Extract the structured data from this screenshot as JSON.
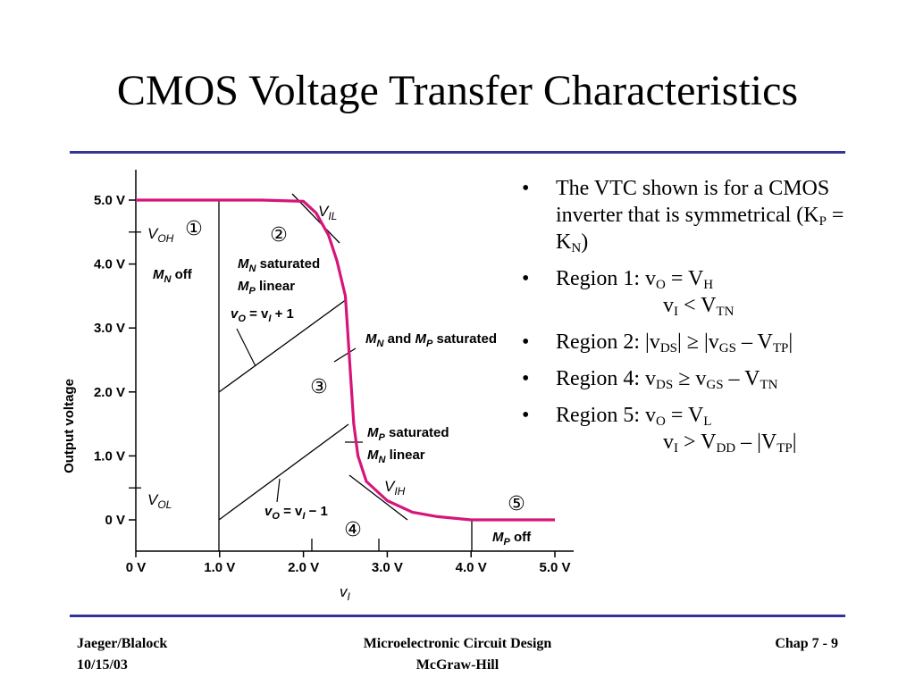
{
  "slide": {
    "title": "CMOS Voltage Transfer Characteristics"
  },
  "chart_data": {
    "type": "line",
    "xlabel": "vI",
    "ylabel": "Output voltage",
    "xlim": [
      0,
      5
    ],
    "ylim": [
      0,
      5
    ],
    "x_ticks": [
      "0 V",
      "1.0 V",
      "2.0 V",
      "3.0 V",
      "4.0 V",
      "5.0 V"
    ],
    "y_ticks": [
      "0 V",
      "1.0 V",
      "2.0 V",
      "3.0 V",
      "4.0 V",
      "5.0 V"
    ],
    "series": [
      {
        "x": [
          0,
          1.0,
          1.5,
          2.0,
          2.15,
          2.3,
          2.4,
          2.5,
          2.52,
          2.55,
          2.58,
          2.6,
          2.65,
          2.75,
          3.0,
          3.3,
          3.6,
          4.0,
          4.5,
          5.0
        ],
        "y": [
          5.0,
          5.0,
          5.0,
          4.98,
          4.8,
          4.45,
          4.05,
          3.5,
          3.1,
          2.5,
          1.9,
          1.5,
          1.0,
          0.6,
          0.3,
          0.12,
          0.05,
          0.0,
          0.0,
          0.0
        ]
      }
    ],
    "annotations": {
      "voh_main": "V",
      "voh_sub": "OH",
      "vol_main": "V",
      "vol_sub": "OL",
      "vil_main": "V",
      "vil_sub": "IL",
      "vih_main": "V",
      "vih_sub": "IH",
      "region1": "①",
      "region2": "②",
      "region3": "③",
      "region4": "④",
      "region5": "⑤",
      "mn_off_m": "M",
      "mn_off_sub": "N",
      "mn_off_rest": " off",
      "mp_off_m": "M",
      "mp_off_sub": "P",
      "mp_off_rest": " off",
      "mn_sat_m": "M",
      "mn_sat_sub": "N",
      "mn_sat_rest": " saturated",
      "mp_lin_m": "M",
      "mp_lin_sub": "P",
      "mp_lin_rest": " linear",
      "both_m1": "M",
      "both_sub1": "N",
      "both_mid": " and ",
      "both_m2": "M",
      "both_sub2": "P",
      "both_rest": " saturated",
      "mp_sat_m": "M",
      "mp_sat_sub": "P",
      "mp_sat_rest": " saturated",
      "mn_lin_m": "M",
      "mn_lin_sub": "N",
      "mn_lin_rest": " linear",
      "eq1_left": "v",
      "eq1_lsub": "O",
      "eq1_mid": " = v",
      "eq1_rsub": "I",
      "eq1_right": " + 1",
      "eq2_left": "v",
      "eq2_lsub": "O",
      "eq2_mid": " = v",
      "eq2_rsub": "I",
      "eq2_right": " − 1",
      "x_axis_main": "v",
      "x_axis_sub": "I"
    },
    "curve_color": "#d6157a"
  },
  "bullets": {
    "b1": {
      "pre": "The VTC shown is for a CMOS inverter that is symmetrical (K",
      "s1": "P",
      "mid": " = K",
      "s2": "N",
      "post": ")"
    },
    "b2": {
      "pre": "Region 1: v",
      "s1": "O",
      "mid": " = V",
      "s2": "H",
      "c_pre": "v",
      "c_s1": "I",
      "c_mid": " < V",
      "c_s2": "TN"
    },
    "b3": {
      "pre": "Region 2: |v",
      "s1": "DS",
      "mid": "| ≥ |v",
      "s2": "GS",
      "mid2": " – V",
      "s3": "TP",
      "post": "|"
    },
    "b4": {
      "pre": "Region 4: v",
      "s1": "DS",
      "mid": " ≥ v",
      "s2": "GS",
      "mid2": " – V",
      "s3": "TN"
    },
    "b5": {
      "pre": "Region 5: v",
      "s1": "O",
      "mid": " = V",
      "s2": "L",
      "c_pre": "v",
      "c_s1": "I",
      "c_mid": " > V",
      "c_s2": "DD",
      "c_mid2": " – |V",
      "c_s3": "TP",
      "c_post": "|"
    }
  },
  "footer": {
    "left_line1": "Jaeger/Blalock",
    "left_line2": "10/15/03",
    "center_line1": "Microelectronic Circuit Design",
    "center_line2": "McGraw-Hill",
    "right": "Chap 7 - 9"
  }
}
